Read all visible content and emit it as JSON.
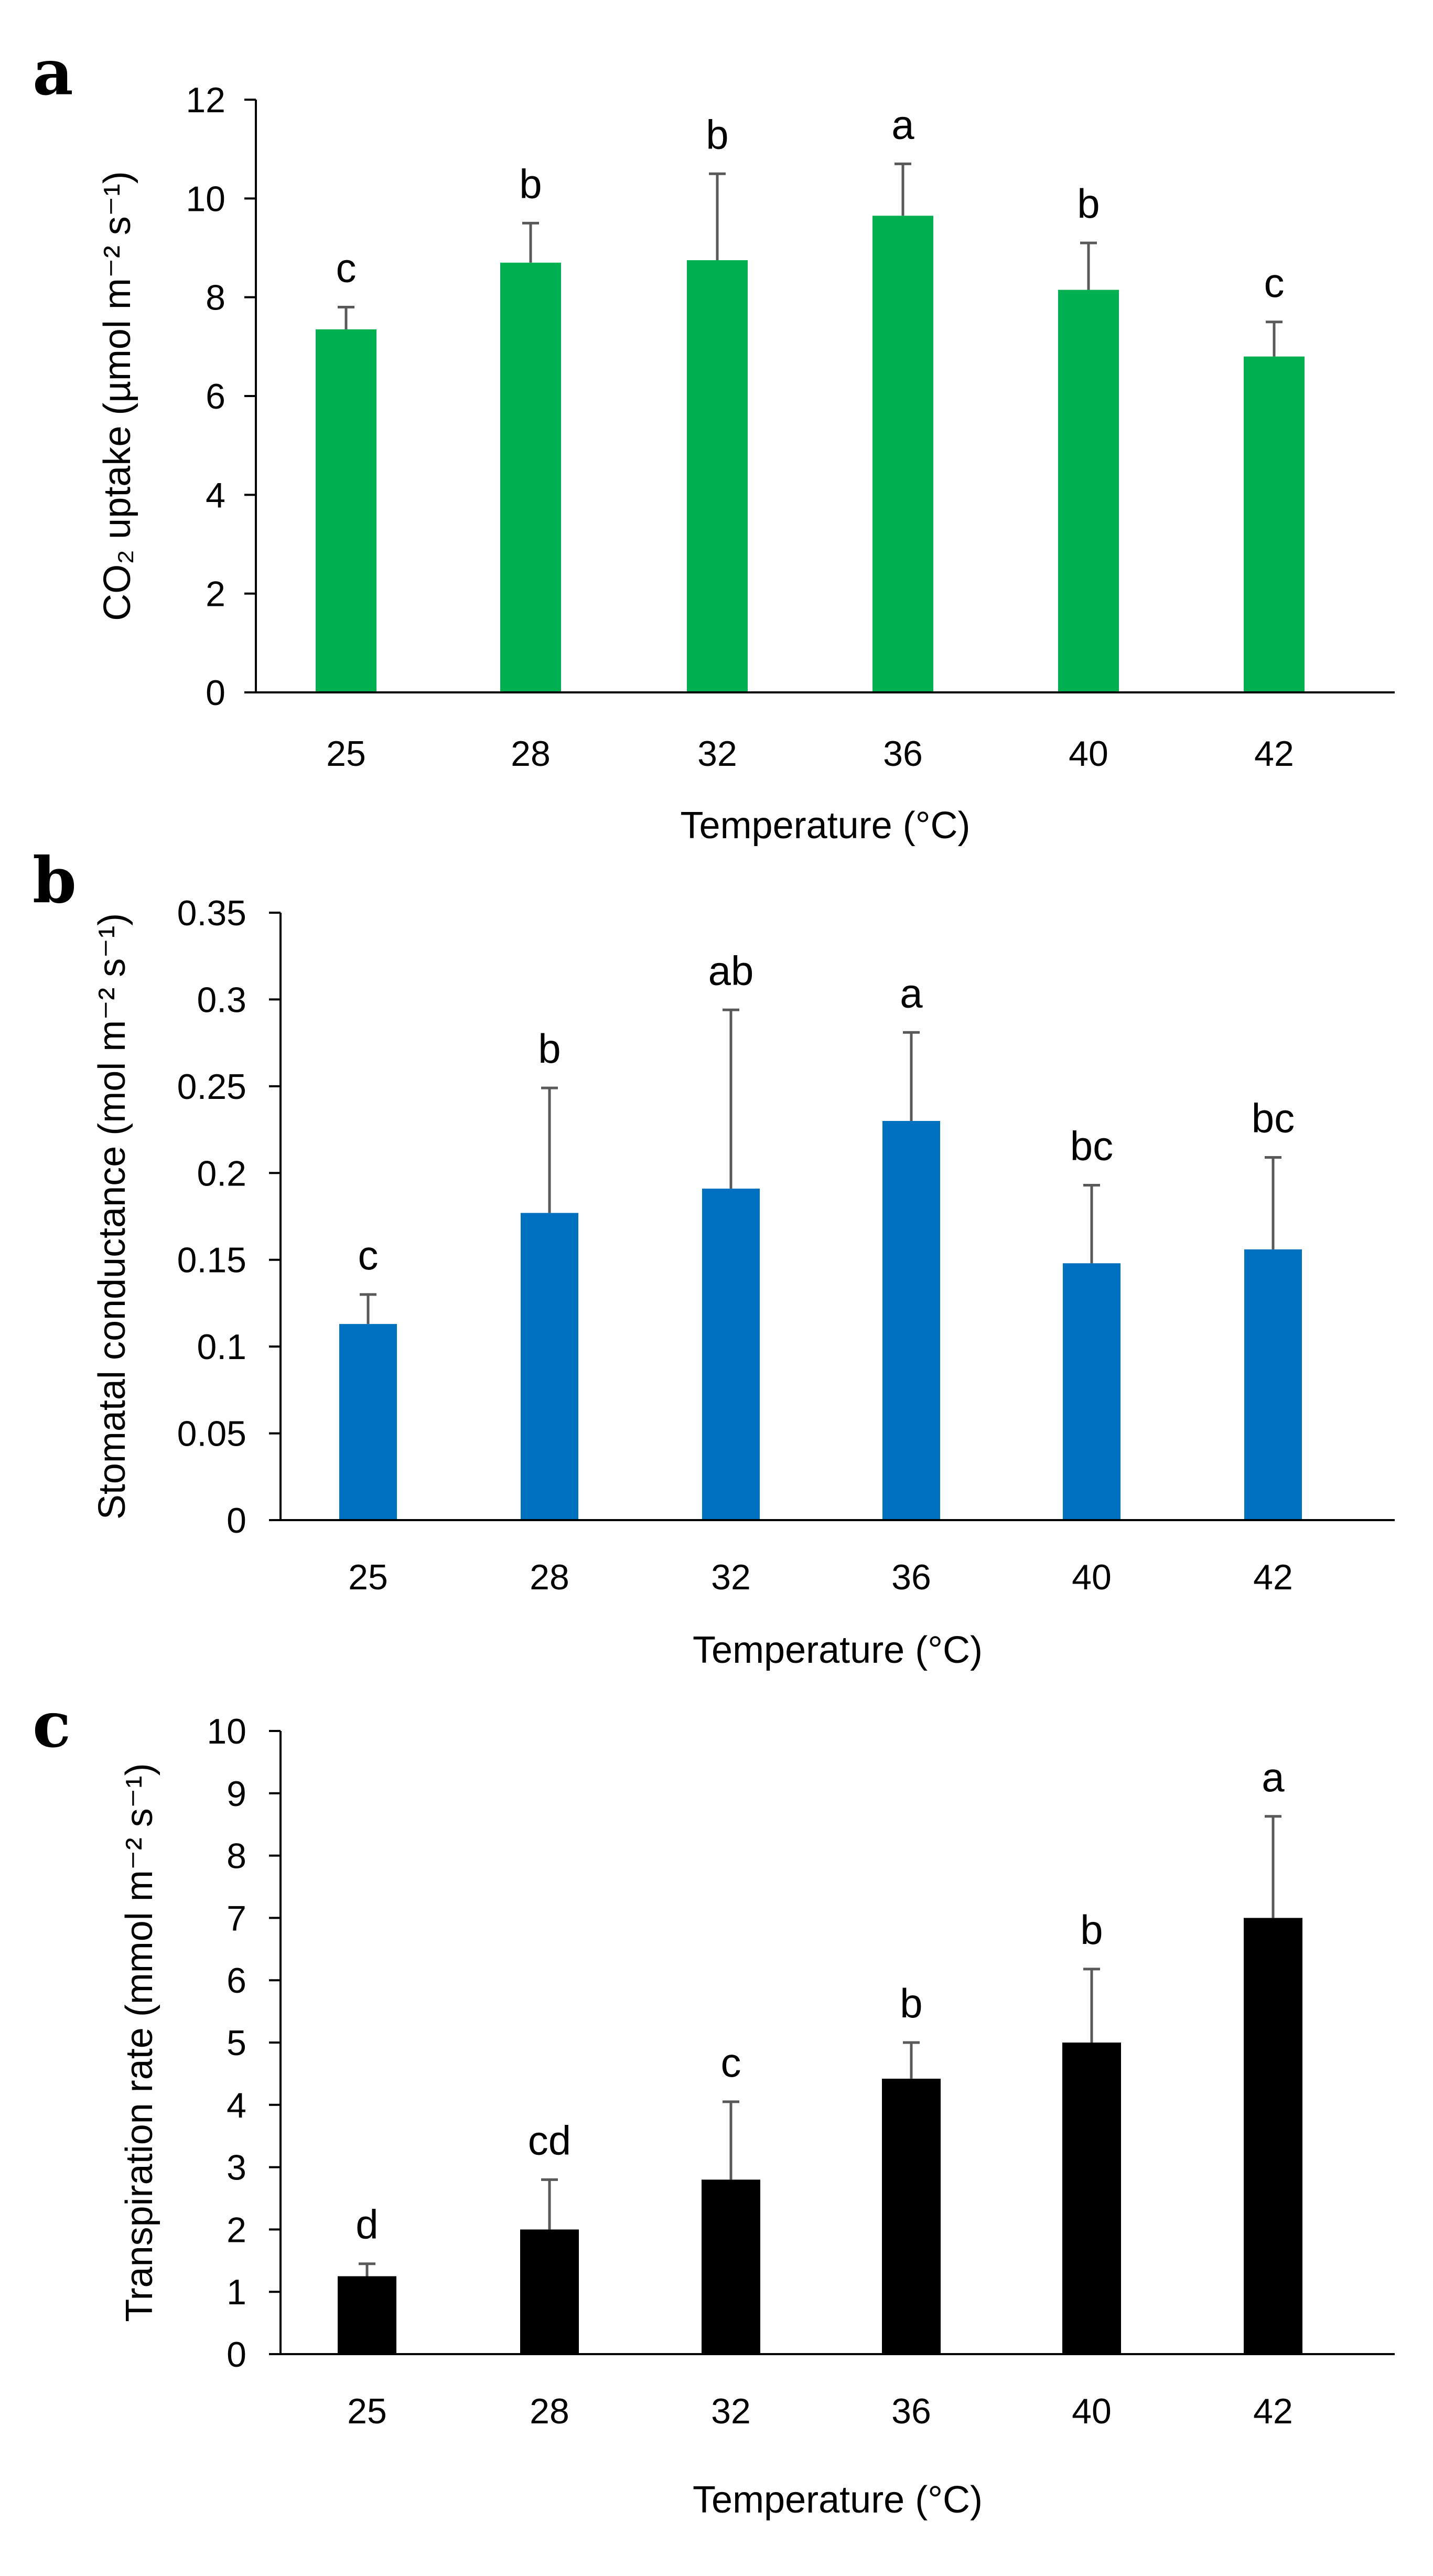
{
  "chart_data": [
    {
      "panel": "a",
      "type": "bar",
      "categories": [
        "25",
        "28",
        "32",
        "36",
        "40",
        "42"
      ],
      "values": [
        7.35,
        8.7,
        8.75,
        9.65,
        8.15,
        6.8
      ],
      "errors": [
        0.45,
        0.8,
        1.75,
        1.05,
        0.95,
        0.7
      ],
      "significance": [
        "c",
        "b",
        "b",
        "a",
        "b",
        "c"
      ],
      "xlabel": "Temperature (°C)",
      "ylabel": "CO₂ uptake  (µmol m⁻² s⁻¹)",
      "ylim": [
        0,
        12
      ],
      "yticks": [
        "0",
        "2",
        "4",
        "6",
        "8",
        "10",
        "12"
      ],
      "color": "#00B050"
    },
    {
      "panel": "b",
      "type": "bar",
      "categories": [
        "25",
        "28",
        "32",
        "36",
        "40",
        "42"
      ],
      "values": [
        0.113,
        0.177,
        0.191,
        0.23,
        0.148,
        0.156
      ],
      "errors": [
        0.017,
        0.072,
        0.103,
        0.051,
        0.045,
        0.053
      ],
      "significance": [
        "c",
        "b",
        "ab",
        "a",
        "bc",
        "bc"
      ],
      "xlabel": "Temperature (°C)",
      "ylabel": "Stomatal conductance (mol m⁻² s⁻¹)",
      "ylim": [
        0,
        0.35
      ],
      "yticks": [
        "0",
        "0.05",
        "0.1",
        "0.15",
        "0.2",
        "0.25",
        "0.3",
        "0.35"
      ],
      "color": "#0070C0"
    },
    {
      "panel": "c",
      "type": "bar",
      "categories": [
        "25",
        "28",
        "32",
        "36",
        "40",
        "42"
      ],
      "values": [
        1.25,
        2.0,
        2.8,
        4.42,
        5.0,
        7.0
      ],
      "errors": [
        0.2,
        0.8,
        1.25,
        0.58,
        1.18,
        1.63
      ],
      "significance": [
        "d",
        "cd",
        "c",
        "b",
        "b",
        "a"
      ],
      "xlabel": "Temperature (°C)",
      "ylabel": "Transpiration rate (mmol m⁻² s⁻¹)",
      "ylim": [
        0,
        10
      ],
      "yticks": [
        "0",
        "1",
        "2",
        "3",
        "4",
        "5",
        "6",
        "7",
        "8",
        "9",
        "10"
      ],
      "color": "#000000"
    }
  ]
}
